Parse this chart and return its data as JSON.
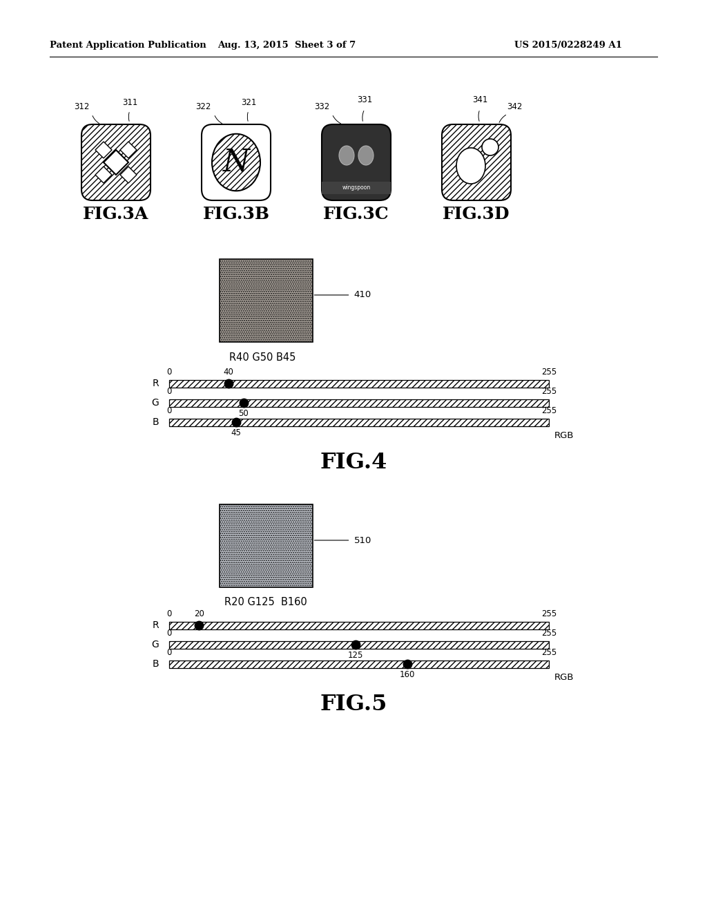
{
  "header_left": "Patent Application Publication",
  "header_mid": "Aug. 13, 2015  Sheet 3 of 7",
  "header_right": "US 2015/0228249 A1",
  "fig3_labels": [
    "FIG.3A",
    "FIG.3B",
    "FIG.3C",
    "FIG.3D"
  ],
  "fig4_title": "FIG.4",
  "fig5_title": "FIG.5",
  "fig4_color_label": "R40 G50 B45",
  "fig4_ref": "410",
  "fig5_color_label": "R20 G125  B160",
  "fig5_ref": "510",
  "fig4_R": 40,
  "fig4_G": 50,
  "fig4_B": 45,
  "fig5_R": 20,
  "fig5_G": 125,
  "fig5_B": 160,
  "rgb_max": 255,
  "bg_color": "#ffffff",
  "text_color": "#000000"
}
